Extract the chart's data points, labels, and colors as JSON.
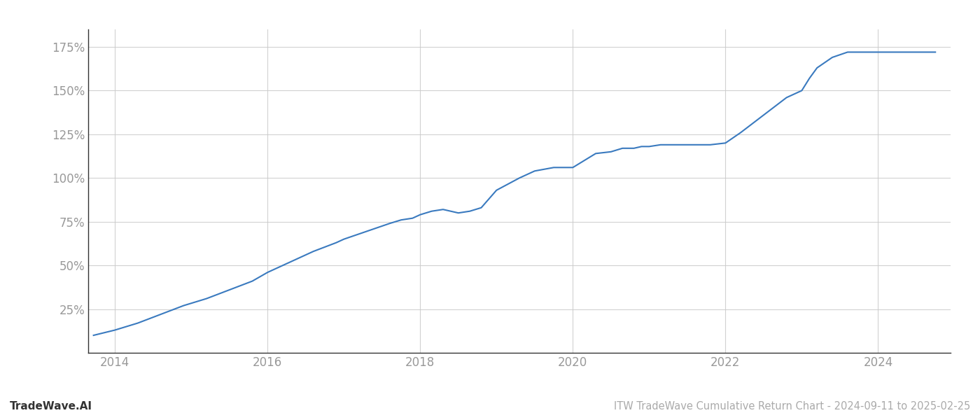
{
  "title": "ITW TradeWave Cumulative Return Chart - 2024-09-11 to 2025-02-25",
  "watermark": "TradeWave.AI",
  "line_color": "#3a7abf",
  "background_color": "#ffffff",
  "grid_color": "#cccccc",
  "x_years": [
    2013.72,
    2014.0,
    2014.3,
    2014.6,
    2014.9,
    2015.2,
    2015.5,
    2015.8,
    2016.0,
    2016.3,
    2016.6,
    2016.9,
    2017.0,
    2017.2,
    2017.4,
    2017.6,
    2017.75,
    2017.9,
    2018.0,
    2018.15,
    2018.3,
    2018.5,
    2018.65,
    2018.8,
    2019.0,
    2019.3,
    2019.5,
    2019.75,
    2020.0,
    2020.15,
    2020.3,
    2020.5,
    2020.65,
    2020.8,
    2020.9,
    2021.0,
    2021.15,
    2021.3,
    2021.5,
    2021.8,
    2022.0,
    2022.2,
    2022.5,
    2022.8,
    2023.0,
    2023.1,
    2023.2,
    2023.4,
    2023.6,
    2024.0,
    2024.5,
    2024.75
  ],
  "y_values": [
    10,
    13,
    17,
    22,
    27,
    31,
    36,
    41,
    46,
    52,
    58,
    63,
    65,
    68,
    71,
    74,
    76,
    77,
    79,
    81,
    82,
    80,
    81,
    83,
    93,
    100,
    104,
    106,
    106,
    110,
    114,
    115,
    117,
    117,
    118,
    118,
    119,
    119,
    119,
    119,
    120,
    126,
    136,
    146,
    150,
    157,
    163,
    169,
    172,
    172,
    172,
    172
  ],
  "ytick_values": [
    25,
    50,
    75,
    100,
    125,
    150,
    175
  ],
  "ytick_labels": [
    "25%",
    "50%",
    "75%",
    "100%",
    "125%",
    "150%",
    "175%"
  ],
  "xtick_years": [
    2014,
    2016,
    2018,
    2020,
    2022,
    2024
  ],
  "xlim_start": 2013.65,
  "xlim_end": 2024.95,
  "ylim_bottom": 0,
  "ylim_top": 185,
  "line_width": 1.5,
  "title_fontsize": 10.5,
  "tick_fontsize": 12,
  "watermark_fontsize": 11,
  "tick_color": "#999999",
  "spine_color": "#333333",
  "bottom_text_color": "#aaaaaa",
  "watermark_color": "#333333"
}
